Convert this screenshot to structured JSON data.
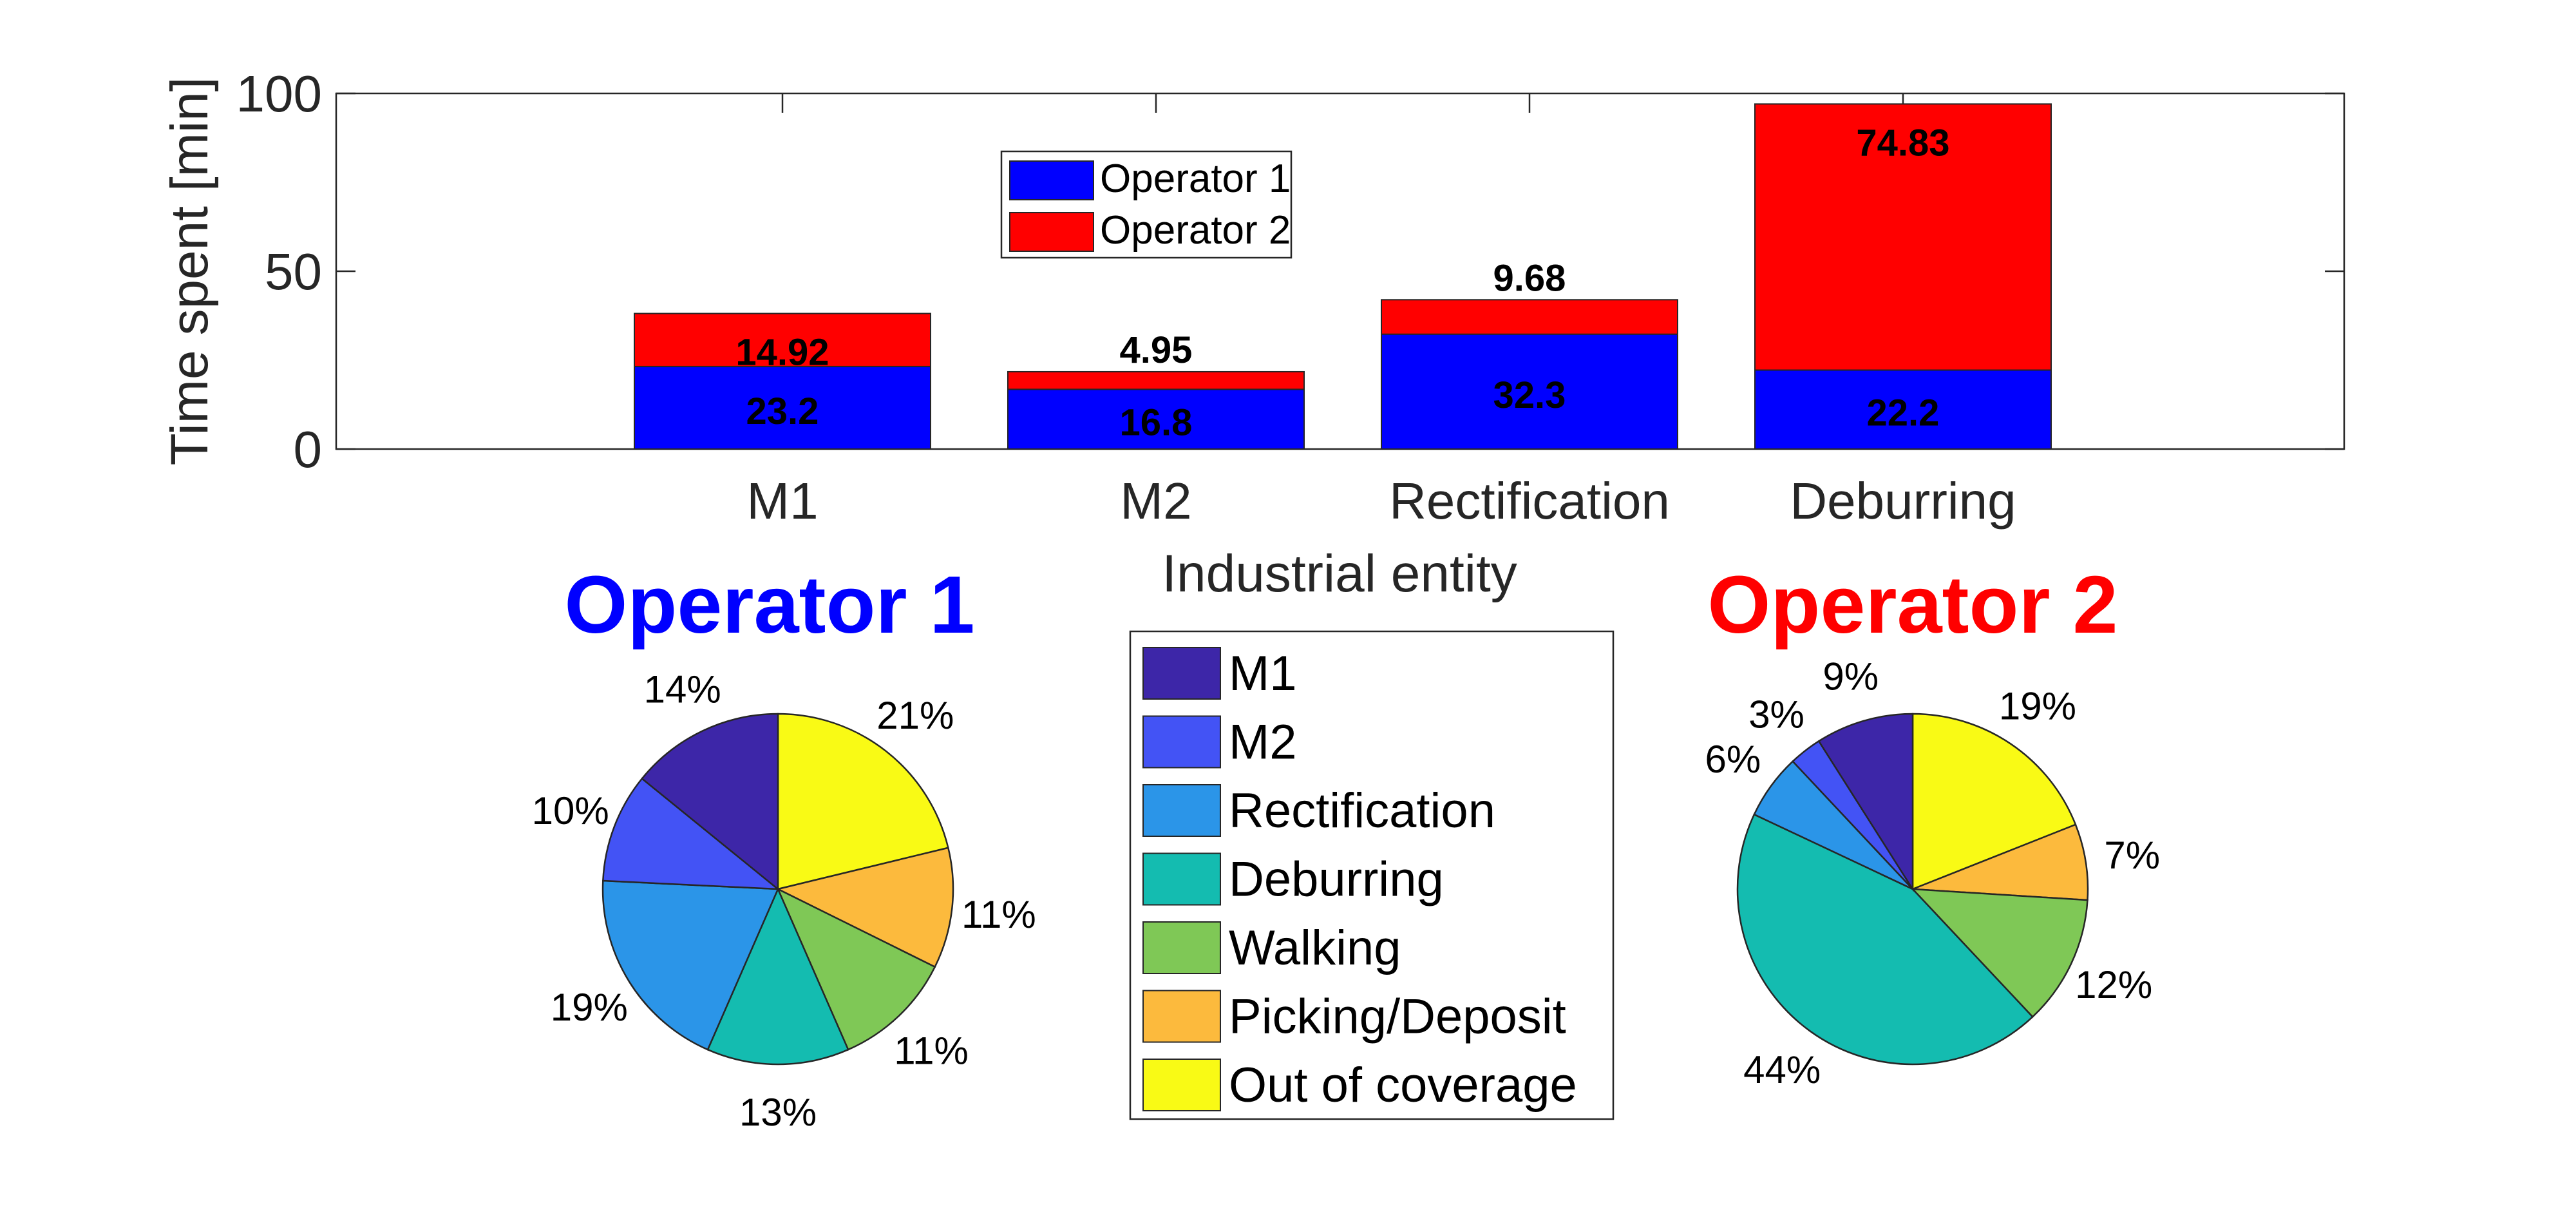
{
  "chart_data": [
    {
      "type": "bar",
      "stacked": true,
      "categories": [
        "M1",
        "M2",
        "Rectification",
        "Deburring"
      ],
      "series": [
        {
          "name": "Operator 1",
          "color": "#0000ff",
          "values": [
            23.2,
            16.8,
            32.3,
            22.2
          ]
        },
        {
          "name": "Operator 2",
          "color": "#ff0000",
          "values": [
            14.92,
            4.95,
            9.68,
            74.83
          ]
        }
      ],
      "data_labels": {
        "Operator 1": [
          "23.2",
          "16.8",
          "32.3",
          "22.2"
        ],
        "Operator 2": [
          "14.92",
          "4.95",
          "9.68",
          "74.83"
        ]
      },
      "xlabel": "Industrial entity",
      "ylabel": "Time spent [min]",
      "ylim": [
        0,
        100
      ],
      "yticks": [
        "0",
        "50",
        "100"
      ],
      "grid": false,
      "legend": {
        "placement": "top-left",
        "entries": [
          "Operator 1",
          "Operator 2"
        ]
      }
    },
    {
      "type": "pie",
      "title": "Operator 1",
      "title_color": "#0000ff",
      "slices": [
        {
          "label": "Out of coverage",
          "value": 21,
          "text": "21%"
        },
        {
          "label": "Picking/Deposit",
          "value": 11,
          "text": "11%"
        },
        {
          "label": "Walking",
          "value": 11,
          "text": "11%"
        },
        {
          "label": "Deburring",
          "value": 13,
          "text": "13%"
        },
        {
          "label": "Rectification",
          "value": 19,
          "text": "19%"
        },
        {
          "label": "M2",
          "value": 10,
          "text": "10%"
        },
        {
          "label": "M1",
          "value": 14,
          "text": "14%"
        }
      ]
    },
    {
      "type": "pie",
      "title": "Operator 2",
      "title_color": "#ff0000",
      "slices": [
        {
          "label": "Out of coverage",
          "value": 19,
          "text": "19%"
        },
        {
          "label": "Picking/Deposit",
          "value": 7,
          "text": "7%"
        },
        {
          "label": "Walking",
          "value": 12,
          "text": "12%"
        },
        {
          "label": "Deburring",
          "value": 44,
          "text": "44%"
        },
        {
          "label": "Rectification",
          "value": 6,
          "text": "6%"
        },
        {
          "label": "M2",
          "value": 3,
          "text": "3%"
        },
        {
          "label": "M1",
          "value": 9,
          "text": "9%"
        }
      ]
    }
  ],
  "pie_legend": {
    "entries": [
      {
        "label": "M1",
        "color": "#3d26a8"
      },
      {
        "label": "M2",
        "color": "#4353f5"
      },
      {
        "label": "Rectification",
        "color": "#2b95e8"
      },
      {
        "label": "Deburring",
        "color": "#14bcb0"
      },
      {
        "label": "Walking",
        "color": "#7fc856"
      },
      {
        "label": "Picking/Deposit",
        "color": "#fcba3d"
      },
      {
        "label": "Out of coverage",
        "color": "#f9fa15"
      }
    ]
  }
}
